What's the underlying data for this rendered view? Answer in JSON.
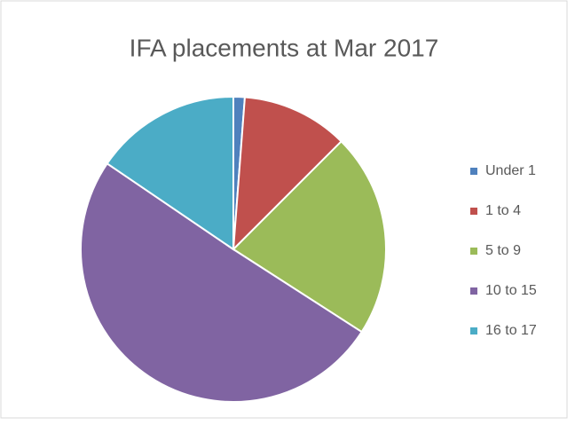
{
  "chart_data": {
    "type": "pie",
    "title": "IFA placements at Mar 2017",
    "categories": [
      "Under 1",
      "1 to 4",
      "5 to 9",
      "10 to 15",
      "16 to 17"
    ],
    "values": [
      1.2,
      11.3,
      21.6,
      50.4,
      15.5
    ],
    "colors": [
      "#4f81bd",
      "#c0504d",
      "#9bbb59",
      "#8064a2",
      "#4bacc6"
    ],
    "legend": "right"
  }
}
